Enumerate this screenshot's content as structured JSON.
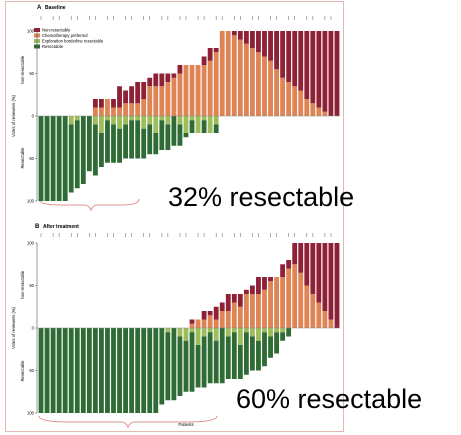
{
  "figure": {
    "border_color": "#e3b7b4",
    "colors": {
      "non_resectable": "#8e2135",
      "chemotherapy_preferred": "#de8455",
      "exploration_borderline_resectable": "#9dbd5c",
      "resectable": "#2f6b35",
      "brace": "#e09090"
    },
    "legend": [
      {
        "key": "non_resectable",
        "label": "Non-resectable"
      },
      {
        "key": "chemotherapy_preferred",
        "label": "Chemotherapy preferred"
      },
      {
        "key": "exploration_borderline_resectable",
        "label": "Exploration borderline resectable"
      },
      {
        "key": "resectable",
        "label": "Resectable"
      }
    ]
  },
  "annotations": {
    "baseline_result": "32% resectable",
    "after_treatment_result": "60% resectable"
  },
  "chart_data": [
    {
      "type": "bar",
      "panel_letter": "A",
      "title": "Baseline",
      "ylabel": "Votes of reviewers (%)",
      "upper_region_label": "Non-resectable",
      "lower_region_label": "Resectable",
      "yticks": [
        100,
        50,
        0,
        50,
        100
      ],
      "ylim": [
        -100,
        100
      ],
      "n_patients": 50,
      "up_total": [
        0,
        0,
        0,
        0,
        0,
        0,
        0,
        0,
        0,
        20,
        20,
        20,
        20,
        35,
        30,
        35,
        40,
        40,
        45,
        50,
        50,
        50,
        50,
        60,
        60,
        60,
        60,
        70,
        80,
        80,
        100,
        100,
        100,
        100,
        100,
        100,
        100,
        100,
        100,
        100,
        100,
        100,
        100,
        100,
        100,
        100,
        100,
        100,
        100,
        100
      ],
      "up_nonres": [
        0,
        0,
        0,
        0,
        0,
        0,
        0,
        0,
        0,
        10,
        10,
        0,
        10,
        25,
        15,
        20,
        25,
        20,
        10,
        15,
        15,
        10,
        5,
        10,
        0,
        0,
        0,
        10,
        15,
        5,
        0,
        0,
        5,
        10,
        15,
        20,
        25,
        30,
        35,
        45,
        55,
        60,
        65,
        70,
        80,
        85,
        90,
        95,
        100,
        100
      ],
      "down_total": [
        100,
        100,
        100,
        100,
        100,
        90,
        85,
        80,
        65,
        70,
        60,
        55,
        55,
        55,
        50,
        50,
        50,
        50,
        45,
        45,
        40,
        40,
        35,
        35,
        25,
        20,
        20,
        20,
        20,
        20,
        0,
        0,
        0,
        0,
        0,
        0,
        0,
        0,
        0,
        0,
        0,
        0,
        0,
        0,
        0,
        0,
        0,
        0,
        0,
        0
      ],
      "down_border": [
        0,
        0,
        0,
        0,
        0,
        10,
        5,
        0,
        0,
        10,
        20,
        5,
        10,
        15,
        10,
        5,
        5,
        15,
        10,
        20,
        5,
        10,
        0,
        10,
        20,
        5,
        20,
        5,
        20,
        10,
        0,
        0,
        0,
        0,
        0,
        0,
        0,
        0,
        0,
        0,
        0,
        0,
        0,
        0,
        0,
        0,
        0,
        0,
        0,
        0
      ]
    },
    {
      "type": "bar",
      "panel_letter": "B",
      "title": "After treatment",
      "ylabel": "Votes of reviewers (%)",
      "upper_region_label": "Non-resectable",
      "lower_region_label": "Resectable",
      "yticks": [
        100,
        50,
        0,
        50,
        100
      ],
      "ylim": [
        -100,
        100
      ],
      "xlabel": "Patients",
      "n_patients": 50,
      "up_total": [
        0,
        0,
        0,
        0,
        0,
        0,
        0,
        0,
        0,
        0,
        0,
        0,
        0,
        0,
        0,
        0,
        0,
        0,
        0,
        0,
        0,
        0,
        0,
        0,
        0,
        10,
        10,
        20,
        20,
        25,
        30,
        40,
        40,
        40,
        45,
        50,
        60,
        60,
        60,
        60,
        75,
        80,
        100,
        100,
        100,
        100,
        100,
        100,
        100,
        100
      ],
      "up_nonres": [
        0,
        0,
        0,
        0,
        0,
        0,
        0,
        0,
        0,
        0,
        0,
        0,
        0,
        0,
        0,
        0,
        0,
        0,
        0,
        0,
        0,
        0,
        0,
        0,
        0,
        5,
        0,
        10,
        5,
        15,
        10,
        20,
        10,
        15,
        5,
        10,
        20,
        15,
        5,
        0,
        15,
        10,
        25,
        35,
        50,
        60,
        70,
        80,
        90,
        100
      ],
      "down_total": [
        100,
        100,
        100,
        100,
        100,
        100,
        100,
        100,
        100,
        100,
        100,
        100,
        100,
        100,
        100,
        100,
        100,
        100,
        100,
        100,
        90,
        85,
        85,
        80,
        75,
        75,
        70,
        70,
        65,
        65,
        65,
        60,
        60,
        60,
        55,
        50,
        50,
        45,
        35,
        30,
        15,
        10,
        0,
        0,
        0,
        0,
        0,
        0,
        0,
        0
      ],
      "down_border": [
        0,
        0,
        0,
        0,
        0,
        0,
        0,
        0,
        0,
        0,
        0,
        0,
        0,
        0,
        0,
        0,
        0,
        0,
        0,
        0,
        0,
        5,
        0,
        10,
        15,
        5,
        20,
        10,
        5,
        15,
        0,
        10,
        5,
        20,
        5,
        10,
        15,
        5,
        10,
        5,
        5,
        0,
        0,
        0,
        0,
        0,
        0,
        0,
        0,
        0
      ]
    }
  ]
}
